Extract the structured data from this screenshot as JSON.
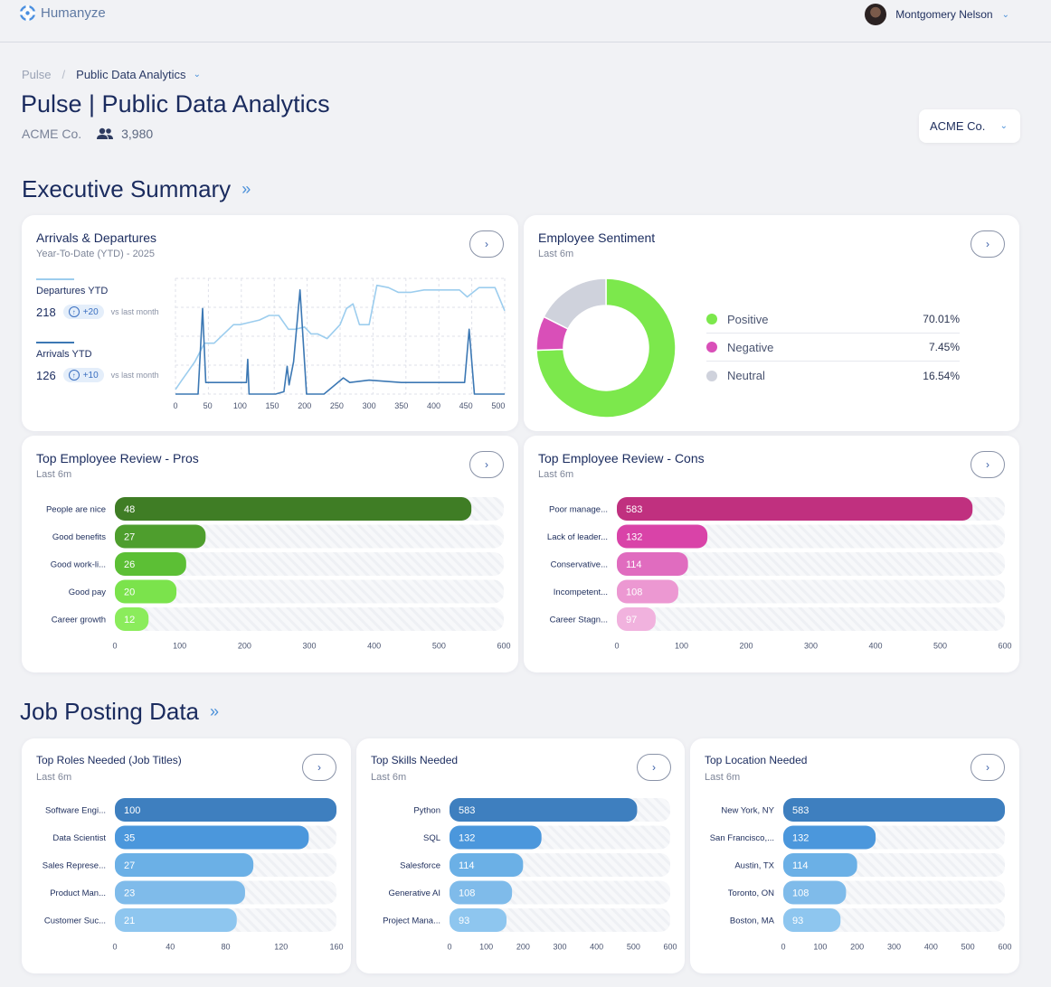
{
  "app": {
    "name": "Humanyze"
  },
  "user": {
    "name": "Montgomery Nelson"
  },
  "breadcrumb": {
    "root": "Pulse",
    "separator": "/",
    "current": "Public Data Analytics"
  },
  "page": {
    "title": "Pulse | Public Data Analytics",
    "company": "ACME Co.",
    "headcount": "3,980"
  },
  "company_select": {
    "value": "ACME Co."
  },
  "sections": {
    "executive": "Executive Summary",
    "jobs": "Job Posting Data",
    "arrow": "»"
  },
  "cards": {
    "arrivals": {
      "title": "Arrivals & Departures",
      "subtitle": "Year-To-Date (YTD) - 2025",
      "departures_label": "Departures YTD",
      "departures_value": "218",
      "departures_delta": "+20",
      "arrivals_label": "Arrivals YTD",
      "arrivals_value": "126",
      "arrivals_delta": "+10",
      "vs_label": "vs last month"
    },
    "sentiment": {
      "title": "Employee Sentiment",
      "subtitle": "Last 6m"
    },
    "pros": {
      "title": "Top Employee Review - Pros",
      "subtitle": "Last 6m"
    },
    "cons": {
      "title": "Top Employee Review - Cons",
      "subtitle": "Last 6m"
    },
    "roles": {
      "title": "Top Roles Needed (Job Titles)",
      "subtitle": "Last 6m"
    },
    "skills": {
      "title": "Top Skills Needed",
      "subtitle": "Last 6m"
    },
    "locations": {
      "title": "Top Location Needed",
      "subtitle": "Last 6m"
    }
  },
  "colors": {
    "pros": [
      "#3f7d25",
      "#4e9e2d",
      "#5cbf35",
      "#7be34c",
      "#8bec5c"
    ],
    "cons": [
      "#c0307f",
      "#d943a8",
      "#e06cbf",
      "#ec98d2",
      "#f1b2de"
    ],
    "blues": [
      "#3e7fbf",
      "#4b97dc",
      "#6bb0e6",
      "#7fbbea",
      "#8ec6ef"
    ],
    "positive": "#7ce84c",
    "negative": "#d94fb8",
    "neutral": "#cfd2dc",
    "departures": "#9ccdee",
    "arrivals": "#3c78b4"
  },
  "chart_data": [
    {
      "id": "arrivals-departures",
      "type": "line",
      "title": "Arrivals & Departures",
      "xticks": [
        0,
        50,
        100,
        150,
        200,
        250,
        300,
        350,
        400,
        450,
        500
      ],
      "xlim": [
        0,
        510
      ],
      "ylim": [
        0,
        50
      ],
      "series": [
        {
          "name": "Departures YTD",
          "points": [
            [
              0,
              2
            ],
            [
              10,
              6
            ],
            [
              20,
              10
            ],
            [
              30,
              14
            ],
            [
              45,
              22
            ],
            [
              60,
              22
            ],
            [
              75,
              26
            ],
            [
              90,
              30
            ],
            [
              100,
              30
            ],
            [
              115,
              31
            ],
            [
              130,
              32
            ],
            [
              145,
              34
            ],
            [
              160,
              34
            ],
            [
              175,
              28
            ],
            [
              185,
              28
            ],
            [
              200,
              29
            ],
            [
              210,
              26
            ],
            [
              220,
              26
            ],
            [
              235,
              24
            ],
            [
              255,
              30
            ],
            [
              265,
              37
            ],
            [
              275,
              39
            ],
            [
              285,
              30
            ],
            [
              300,
              30
            ],
            [
              312,
              47
            ],
            [
              330,
              46
            ],
            [
              345,
              44
            ],
            [
              365,
              44
            ],
            [
              385,
              45
            ],
            [
              405,
              45
            ],
            [
              425,
              45
            ],
            [
              440,
              45
            ],
            [
              452,
              42
            ],
            [
              470,
              46
            ],
            [
              495,
              46
            ],
            [
              510,
              36
            ]
          ]
        },
        {
          "name": "Arrivals YTD",
          "points": [
            [
              0,
              0
            ],
            [
              35,
              0
            ],
            [
              42,
              37
            ],
            [
              47,
              5
            ],
            [
              70,
              5
            ],
            [
              110,
              5
            ],
            [
              112,
              15
            ],
            [
              114,
              0
            ],
            [
              155,
              0
            ],
            [
              168,
              1
            ],
            [
              173,
              12
            ],
            [
              176,
              4
            ],
            [
              183,
              14
            ],
            [
              193,
              45
            ],
            [
              203,
              0
            ],
            [
              230,
              0
            ],
            [
              260,
              7
            ],
            [
              270,
              5
            ],
            [
              300,
              6
            ],
            [
              350,
              5
            ],
            [
              400,
              5
            ],
            [
              448,
              5
            ],
            [
              455,
              28
            ],
            [
              463,
              0
            ],
            [
              510,
              0
            ]
          ]
        }
      ]
    },
    {
      "id": "employee-sentiment",
      "type": "pie",
      "title": "Employee Sentiment",
      "labels": [
        "Positive",
        "Negative",
        "Neutral"
      ],
      "values": [
        70.01,
        7.45,
        16.54
      ],
      "display": [
        "70.01%",
        "7.45%",
        "16.54%"
      ]
    },
    {
      "id": "pros",
      "type": "bar",
      "title": "Top Employee Review - Pros",
      "categories": [
        "People are nice",
        "Good benefits",
        "Good work-li...",
        "Good pay",
        "Career growth"
      ],
      "values": [
        48,
        27,
        26,
        20,
        12
      ],
      "bar_extent": [
        550,
        140,
        110,
        95,
        52
      ],
      "xticks": [
        0,
        100,
        200,
        300,
        400,
        500,
        600
      ],
      "xlim": [
        0,
        600
      ]
    },
    {
      "id": "cons",
      "type": "bar",
      "title": "Top Employee Review - Cons",
      "categories": [
        "Poor manage...",
        "Lack of leader...",
        "Conservative...",
        "Incompetent...",
        "Career Stagn..."
      ],
      "values": [
        583,
        132,
        114,
        108,
        97
      ],
      "bar_extent": [
        550,
        140,
        110,
        95,
        60
      ],
      "xticks": [
        0,
        100,
        200,
        300,
        400,
        500,
        600
      ],
      "xlim": [
        0,
        600
      ]
    },
    {
      "id": "roles",
      "type": "bar",
      "title": "Top Roles Needed (Job Titles)",
      "categories": [
        "Software Engi...",
        "Data Scientist",
        "Sales Represe...",
        "Product Man...",
        "Customer Suc..."
      ],
      "values": [
        100,
        35,
        27,
        23,
        21
      ],
      "bar_extent": [
        160,
        140,
        100,
        94,
        88
      ],
      "xticks": [
        0,
        40,
        80,
        120,
        160
      ],
      "xlim": [
        0,
        160
      ]
    },
    {
      "id": "skills",
      "type": "bar",
      "title": "Top Skills Needed",
      "categories": [
        "Python",
        "SQL",
        "Salesforce",
        "Generative AI",
        "Project Mana..."
      ],
      "values": [
        583,
        132,
        114,
        108,
        93
      ],
      "bar_extent": [
        510,
        250,
        200,
        170,
        155
      ],
      "xticks": [
        0,
        100,
        200,
        300,
        400,
        500,
        600
      ],
      "xlim": [
        0,
        600
      ]
    },
    {
      "id": "locations",
      "type": "bar",
      "title": "Top Location Needed",
      "categories": [
        "New York, NY",
        "San Francisco,...",
        "Austin, TX",
        "Toronto, ON",
        "Boston, MA"
      ],
      "values": [
        583,
        132,
        114,
        108,
        93
      ],
      "bar_extent": [
        600,
        250,
        200,
        170,
        155
      ],
      "xticks": [
        0,
        100,
        200,
        300,
        400,
        500,
        600
      ],
      "xlim": [
        0,
        600
      ]
    }
  ]
}
